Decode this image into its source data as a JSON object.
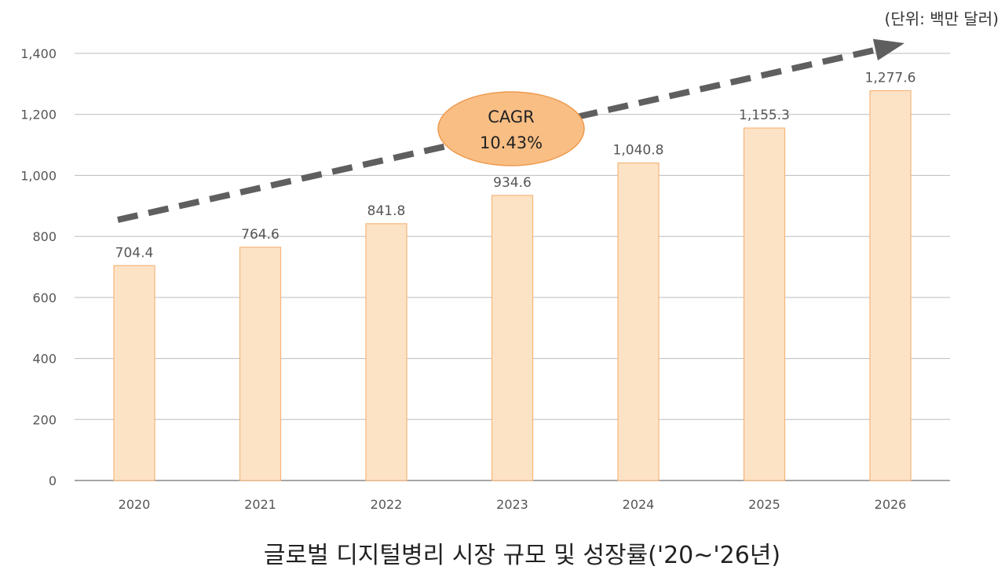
{
  "chart_data": {
    "type": "bar",
    "title": "글로벌 디지털병리 시장 규모 및 성장률('20~'26년)",
    "unit_label": "(단위: 백만 달러)",
    "categories": [
      "2020",
      "2021",
      "2022",
      "2023",
      "2024",
      "2025",
      "2026"
    ],
    "values": [
      704.4,
      764.6,
      841.8,
      934.6,
      1040.8,
      1155.3,
      1277.6
    ],
    "value_labels": [
      "704.4",
      "764.6",
      "841.8",
      "934.6",
      "1,040.8",
      "1,155.3",
      "1,277.6"
    ],
    "yticks": [
      0,
      200,
      400,
      600,
      800,
      1000,
      1200,
      1400
    ],
    "ytick_labels": [
      "0",
      "200",
      "400",
      "600",
      "800",
      "1,000",
      "1,200",
      "1,400"
    ],
    "ylim": [
      0,
      1400
    ],
    "grid": true,
    "legend": "none",
    "annotation": {
      "line1": "CAGR",
      "line2": "10.43%"
    },
    "colors": {
      "bar_fill": "#FDE3C6",
      "bar_stroke": "#F5B57A",
      "grid": "#BBBBBB",
      "trend_arrow": "#5F5F5F",
      "cagr_fill": "#F9BE84",
      "cagr_stroke": "#EE9A4D"
    }
  }
}
